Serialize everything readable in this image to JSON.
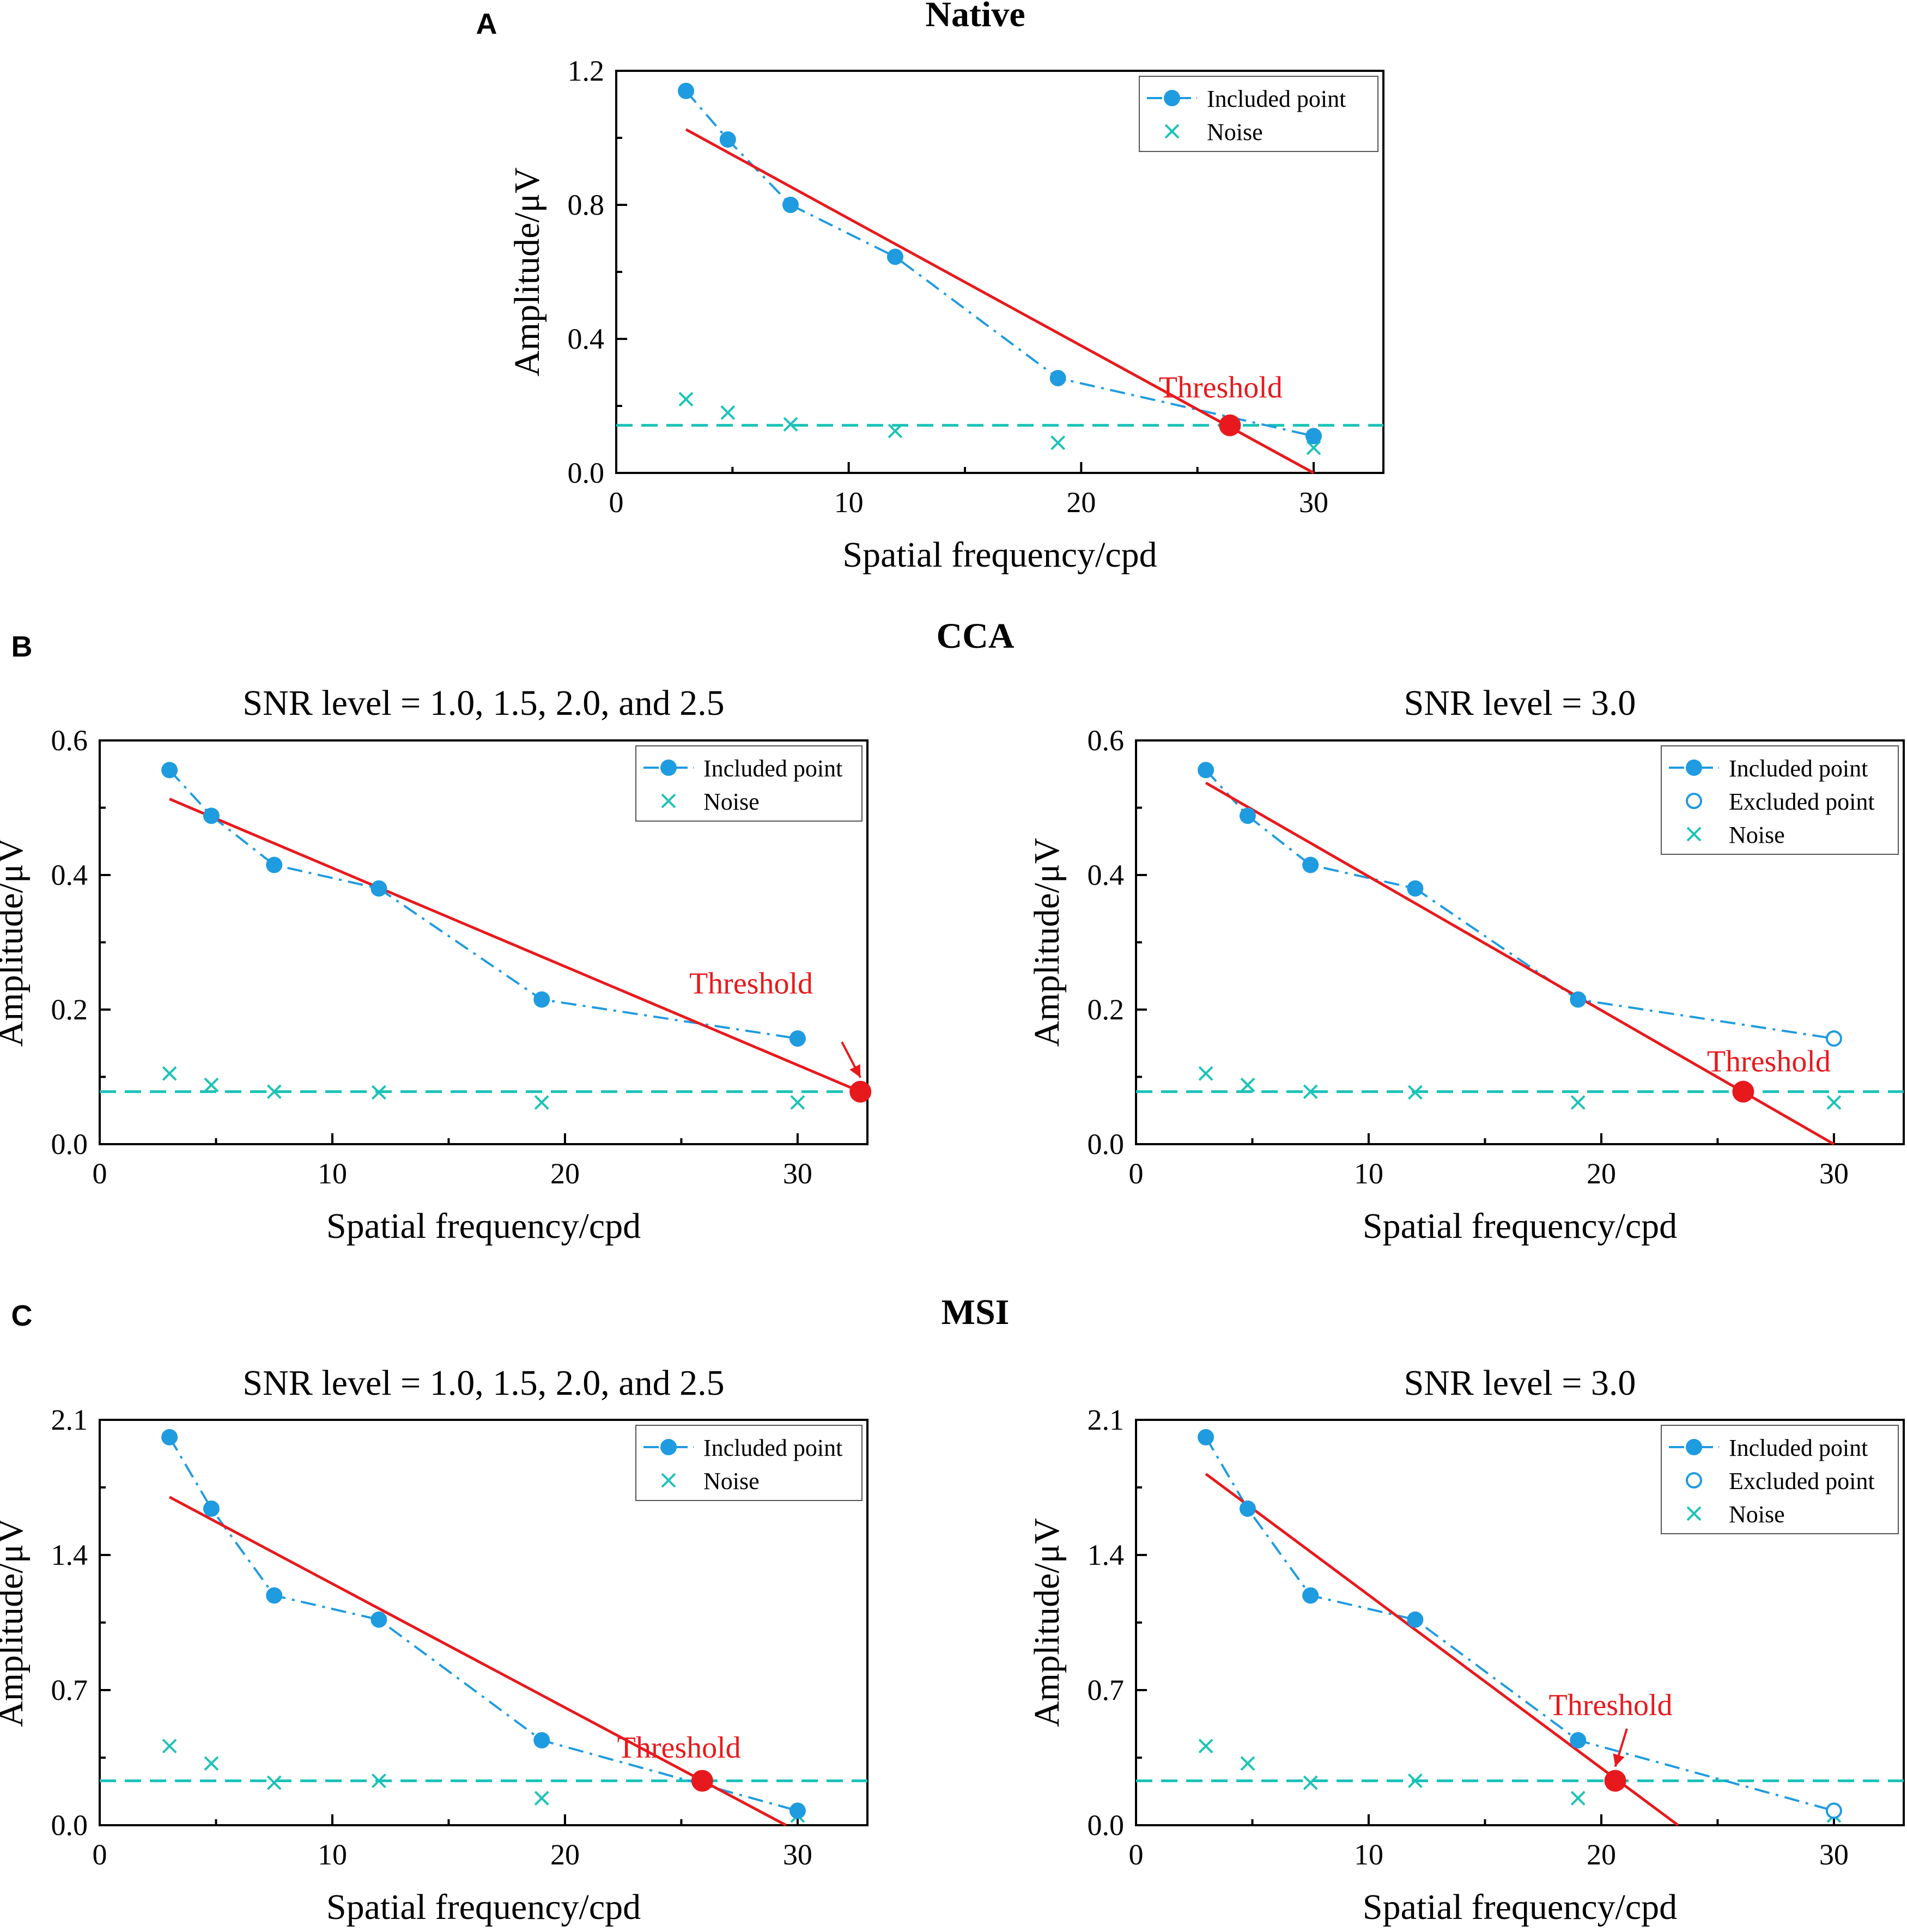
{
  "colors": {
    "included": "#1f9be0",
    "fit": "#e8191d",
    "noise": "#1cc2b8",
    "threshold_text": "#e8191d",
    "axis": "#000000"
  },
  "legend_labels": {
    "included": "Included point",
    "excluded": "Excluded point",
    "noise": "Noise"
  },
  "panels": [
    {
      "id": "A",
      "letter": "A",
      "title": "Native"
    },
    {
      "id": "B",
      "letter": "B",
      "title": "CCA"
    },
    {
      "id": "C",
      "letter": "C",
      "title": "MSI"
    }
  ],
  "chart_data": [
    {
      "type": "line",
      "panel": "A",
      "subtitle": "",
      "xlabel": "Spatial frequency/cpd",
      "ylabel": "Amplitude/μV",
      "xlim": [
        0,
        33
      ],
      "ylim": [
        0,
        1.2
      ],
      "xticks": [
        "0",
        "10",
        "20",
        "30"
      ],
      "yticks": [
        "0.0",
        "0.4",
        "0.8",
        "1.2"
      ],
      "included": {
        "x": [
          3,
          4.8,
          7.5,
          12,
          19,
          30
        ],
        "y": [
          1.14,
          0.995,
          0.8,
          0.645,
          0.283,
          0.11
        ]
      },
      "excluded": {
        "x": [],
        "y": []
      },
      "noise": {
        "x": [
          3,
          4.8,
          7.5,
          12,
          19,
          30
        ],
        "y": [
          0.22,
          0.18,
          0.145,
          0.125,
          0.09,
          0.075
        ]
      },
      "noise_level": 0.142,
      "fit_line": {
        "x": [
          3,
          30
        ],
        "y": [
          1.025,
          0.0
        ]
      },
      "threshold": {
        "x": 26.4,
        "y": 0.142,
        "label": "Threshold",
        "label_pos": [
          26.0,
          0.225
        ],
        "arrow": false
      },
      "legend": [
        "included",
        "noise"
      ]
    },
    {
      "type": "line",
      "panel": "B",
      "subtitle": "SNR level = 1.0, 1.5, 2.0, and 2.5",
      "xlabel": "Spatial frequency/cpd",
      "ylabel": "Amplitude/μV",
      "xlim": [
        0,
        33
      ],
      "ylim": [
        0,
        0.6
      ],
      "xticks": [
        "0",
        "10",
        "20",
        "30"
      ],
      "yticks": [
        "0.0",
        "0.2",
        "0.4",
        "0.6"
      ],
      "included": {
        "x": [
          3,
          4.8,
          7.5,
          12,
          19,
          30
        ],
        "y": [
          0.556,
          0.488,
          0.415,
          0.38,
          0.215,
          0.157
        ]
      },
      "excluded": {
        "x": [],
        "y": []
      },
      "noise": {
        "x": [
          3,
          4.8,
          7.5,
          12,
          19,
          30
        ],
        "y": [
          0.105,
          0.088,
          0.078,
          0.077,
          0.062,
          0.062
        ]
      },
      "noise_level": 0.078,
      "fit_line": {
        "x": [
          3,
          32.7
        ],
        "y": [
          0.513,
          0.078
        ]
      },
      "threshold": {
        "x": 32.7,
        "y": 0.078,
        "label": "Threshold",
        "label_pos": [
          28.0,
          0.224
        ],
        "arrow": true,
        "arrow_from": [
          31.9,
          0.152
        ]
      },
      "legend": [
        "included",
        "noise"
      ]
    },
    {
      "type": "line",
      "panel": "B",
      "subtitle": "SNR level = 3.0",
      "xlabel": "Spatial frequency/cpd",
      "ylabel": "Amplitude/μV",
      "xlim": [
        0,
        33
      ],
      "ylim": [
        0,
        0.6
      ],
      "xticks": [
        "0",
        "10",
        "20",
        "30"
      ],
      "yticks": [
        "0.0",
        "0.2",
        "0.4",
        "0.6"
      ],
      "included": {
        "x": [
          3,
          4.8,
          7.5,
          12,
          19
        ],
        "y": [
          0.556,
          0.488,
          0.415,
          0.38,
          0.215
        ]
      },
      "excluded": {
        "x": [
          30
        ],
        "y": [
          0.157
        ]
      },
      "noise": {
        "x": [
          3,
          4.8,
          7.5,
          12,
          19,
          30
        ],
        "y": [
          0.105,
          0.088,
          0.078,
          0.077,
          0.062,
          0.062
        ]
      },
      "noise_level": 0.078,
      "fit_line": {
        "x": [
          3,
          30
        ],
        "y": [
          0.537,
          0.0
        ]
      },
      "threshold": {
        "x": 26.1,
        "y": 0.078,
        "label": "Threshold",
        "label_pos": [
          27.2,
          0.108
        ],
        "arrow": false
      },
      "legend": [
        "included",
        "excluded",
        "noise"
      ]
    },
    {
      "type": "line",
      "panel": "C",
      "subtitle": "SNR level = 1.0, 1.5, 2.0, and 2.5",
      "xlabel": "Spatial frequency/cpd",
      "ylabel": "Amplitude/μV",
      "xlim": [
        0,
        33
      ],
      "ylim": [
        0,
        2.1
      ],
      "xticks": [
        "0",
        "10",
        "20",
        "30"
      ],
      "yticks": [
        "0.0",
        "0.7",
        "1.4",
        "2.1"
      ],
      "included": {
        "x": [
          3,
          4.8,
          7.5,
          12,
          19,
          30
        ],
        "y": [
          2.01,
          1.64,
          1.19,
          1.065,
          0.44,
          0.075
        ]
      },
      "excluded": {
        "x": [],
        "y": []
      },
      "noise": {
        "x": [
          3,
          4.8,
          7.5,
          12,
          19,
          30
        ],
        "y": [
          0.41,
          0.32,
          0.22,
          0.23,
          0.14,
          0.05
        ]
      },
      "noise_level": 0.23,
      "fit_line": {
        "x": [
          3,
          29.5
        ],
        "y": [
          1.7,
          0.0
        ]
      },
      "threshold": {
        "x": 25.9,
        "y": 0.23,
        "label": "Threshold",
        "label_pos": [
          24.9,
          0.35
        ],
        "arrow": false
      },
      "legend": [
        "included",
        "noise"
      ]
    },
    {
      "type": "line",
      "panel": "C",
      "subtitle": "SNR level = 3.0",
      "xlabel": "Spatial frequency/cpd",
      "ylabel": "Amplitude/μV",
      "xlim": [
        0,
        33
      ],
      "ylim": [
        0,
        2.1
      ],
      "xticks": [
        "0",
        "10",
        "20",
        "30"
      ],
      "yticks": [
        "0.0",
        "0.7",
        "1.4",
        "2.1"
      ],
      "included": {
        "x": [
          3,
          4.8,
          7.5,
          12,
          19
        ],
        "y": [
          2.01,
          1.64,
          1.19,
          1.065,
          0.44
        ]
      },
      "excluded": {
        "x": [
          30
        ],
        "y": [
          0.075
        ]
      },
      "noise": {
        "x": [
          3,
          4.8,
          7.5,
          12,
          19,
          30
        ],
        "y": [
          0.41,
          0.32,
          0.22,
          0.23,
          0.14,
          0.05
        ]
      },
      "noise_level": 0.23,
      "fit_line": {
        "x": [
          3,
          23.3
        ],
        "y": [
          1.82,
          0.0
        ]
      },
      "threshold": {
        "x": 20.6,
        "y": 0.23,
        "label": "Threshold",
        "label_pos": [
          20.4,
          0.57
        ],
        "arrow": true,
        "arrow_from": [
          21.1,
          0.5
        ]
      },
      "legend": [
        "included",
        "excluded",
        "noise"
      ]
    }
  ]
}
